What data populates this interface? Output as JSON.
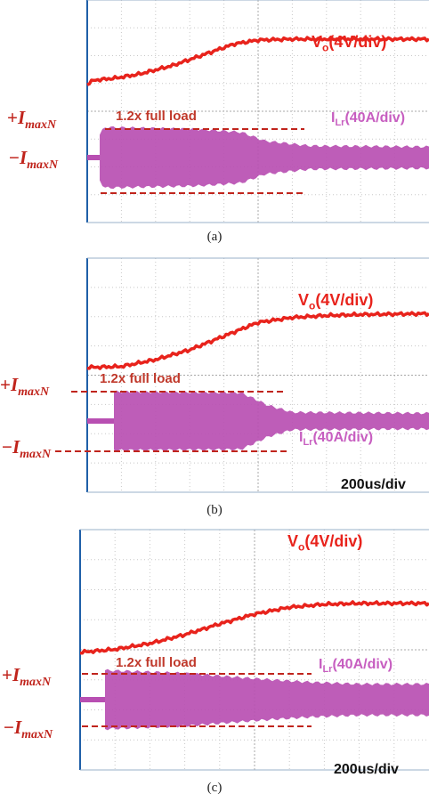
{
  "colors": {
    "vo": "#e8231c",
    "ilr": "#b84fb2",
    "imax_line": "#c0241c",
    "frame": "#1f5fa8",
    "grid": "#c8c8c8"
  },
  "labels": {
    "vo": "V",
    "vo_sub": "o",
    "vo_unit": "(4V/div)",
    "ilr": "I",
    "ilr_sub": "Lr",
    "ilr_unit": "(40A/div)",
    "full_load": "1.2x full load",
    "time_scale": "200us/div",
    "imax_pos_sign": "+",
    "imax_neg_sign": "−",
    "imax_letter": "I",
    "imax_sub": "maxN"
  },
  "captions": [
    "(a)",
    "(b)",
    "(c)"
  ],
  "chart_data": [
    {
      "type": "line",
      "panel": "(a)",
      "series": [
        {
          "name": "Vo(4V/div)",
          "x": [
            0,
            0.2,
            0.8,
            1.5,
            2.5,
            3.4,
            4.3,
            5.0,
            6.0,
            7.0,
            8.0,
            10.0
          ],
          "y": [
            0.25,
            0.45,
            0.55,
            0.75,
            1.2,
            1.75,
            2.3,
            2.5,
            2.55,
            2.55,
            2.55,
            2.55
          ]
        },
        {
          "name": "ILr(40A/div)",
          "x": [
            0,
            0.5,
            3.2,
            4.5,
            5.2,
            6.5,
            10.0
          ],
          "y": [
            0.1,
            1.55,
            1.45,
            1.3,
            0.85,
            0.6,
            0.55
          ]
        }
      ],
      "annotations": [
        "1.2x full load"
      ],
      "xlim": [
        0,
        10
      ],
      "ylim": [
        -4,
        4
      ]
    },
    {
      "type": "line",
      "panel": "(b)",
      "series": [
        {
          "name": "Vo(4V/div)",
          "x": [
            0,
            1.0,
            2.0,
            3.0,
            4.0,
            5.0,
            6.0,
            7.0,
            8.0,
            10.0
          ],
          "y": [
            0.1,
            0.15,
            0.5,
            1.0,
            1.7,
            2.4,
            2.65,
            2.75,
            2.8,
            2.85
          ]
        },
        {
          "name": "ILr(40A/div)",
          "x": [
            0,
            0.8,
            4.5,
            5.3,
            6.0,
            10.0
          ],
          "y": [
            0.1,
            1.5,
            1.45,
            0.8,
            0.45,
            0.4
          ]
        }
      ],
      "annotations": [
        "1.2x full load",
        "200us/div"
      ],
      "xlim": [
        0,
        10
      ],
      "ylim": [
        -4,
        4
      ]
    },
    {
      "type": "line",
      "panel": "(c)",
      "series": [
        {
          "name": "Vo(4V/div)",
          "x": [
            0,
            1.0,
            2.0,
            3.0,
            4.0,
            5.0,
            6.0,
            7.0,
            8.0,
            10.0
          ],
          "y": [
            0.1,
            0.25,
            0.55,
            1.0,
            1.55,
            2.05,
            2.4,
            2.55,
            2.6,
            2.6
          ]
        },
        {
          "name": "ILr(40A/div)",
          "x": [
            0,
            0.7,
            3.0,
            5.2,
            6.5,
            8.0,
            10.0
          ],
          "y": [
            0.1,
            1.5,
            1.35,
            1.05,
            0.9,
            0.8,
            0.8
          ]
        }
      ],
      "annotations": [
        "1.2x full load",
        "200us/div"
      ],
      "xlim": [
        0,
        10
      ],
      "ylim": [
        -4,
        4
      ]
    }
  ]
}
